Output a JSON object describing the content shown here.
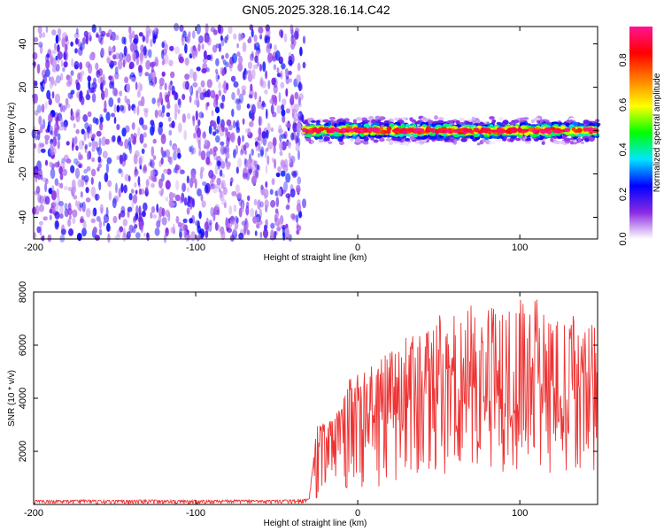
{
  "title": "GN05.2025.328.16.14.C42",
  "chart_data": [
    {
      "type": "heatmap",
      "xlabel": "Height of straight line (km)",
      "ylabel": "Frequency (Hz)",
      "xlim": [
        -200,
        148
      ],
      "ylim": [
        -50,
        48
      ],
      "xticks": [
        -200,
        -100,
        0,
        100
      ],
      "yticks": [
        -40,
        -20,
        0,
        20,
        40
      ],
      "colorbar": {
        "label": "Normalized spectral amplitude",
        "range": [
          0,
          0.95
        ],
        "ticks": [
          0.0,
          0.2,
          0.4,
          0.6,
          0.8
        ],
        "colormap": [
          "#ffffff",
          "#8a2be2",
          "#0000ff",
          "#00e5ff",
          "#00ff00",
          "#ffff00",
          "#ff7f00",
          "#ff0000",
          "#ff1493"
        ]
      },
      "regions": [
        {
          "x_range": [
            -200,
            -33
          ],
          "freq_range": [
            -50,
            48
          ],
          "pattern": "scattered noise",
          "amplitude_range": [
            0.0,
            0.2
          ]
        },
        {
          "x_range": [
            -33,
            148
          ],
          "freq_range": [
            -6,
            6
          ],
          "pattern": "narrow band centered at 0 Hz",
          "peak_amplitude": 0.95
        }
      ]
    },
    {
      "type": "line",
      "xlabel": "Height of straight line (km)",
      "ylabel": "SNR (10 * v/v)",
      "xlim": [
        -200,
        148
      ],
      "ylim": [
        0,
        8000
      ],
      "xticks": [
        -200,
        -100,
        0,
        100
      ],
      "yticks": [
        2000,
        4000,
        6000,
        8000
      ],
      "series": [
        {
          "color": "#ee3333",
          "x": [
            -200,
            -190,
            -180,
            -170,
            -160,
            -150,
            -140,
            -130,
            -120,
            -110,
            -100,
            -90,
            -80,
            -70,
            -60,
            -50,
            -40,
            -30,
            -25,
            -20,
            -15,
            -10,
            -5,
            0,
            5,
            10,
            15,
            20,
            25,
            30,
            35,
            40,
            45,
            50,
            55,
            60,
            65,
            70,
            75,
            80,
            85,
            90,
            95,
            100,
            105,
            110,
            115,
            120,
            125,
            130,
            135,
            140,
            145,
            148
          ],
          "y": [
            150,
            160,
            140,
            170,
            150,
            160,
            150,
            170,
            160,
            150,
            160,
            150,
            170,
            160,
            150,
            160,
            170,
            200,
            2700,
            3000,
            2500,
            3300,
            3200,
            3700,
            3000,
            3600,
            3800,
            3300,
            4000,
            3800,
            4500,
            4200,
            3900,
            4600,
            4300,
            4800,
            4100,
            4700,
            4400,
            4300,
            4900,
            4200,
            4600,
            4300,
            4700,
            5000,
            4200,
            4500,
            4100,
            4600,
            4300,
            4000,
            4400,
            4200
          ],
          "peak": [
            150,
            160,
            150,
            170,
            160,
            150,
            160,
            170,
            160,
            150,
            160,
            150,
            170,
            160,
            150,
            160,
            170,
            200,
            3200,
            3000,
            3300,
            3800,
            4800,
            4900,
            5000,
            5300,
            5500,
            6000,
            5800,
            6500,
            6300,
            7000,
            6400,
            7200,
            6800,
            7300,
            7000,
            7500,
            7100,
            7300,
            7500,
            7400,
            7600,
            7800,
            7500,
            8000,
            7200,
            7400,
            7000,
            7600,
            6800,
            7100,
            7000,
            6800
          ],
          "trough": [
            20,
            30,
            20,
            30,
            20,
            30,
            20,
            30,
            20,
            30,
            20,
            30,
            20,
            30,
            20,
            30,
            20,
            20,
            100,
            600,
            900,
            600,
            300,
            0,
            300,
            800,
            500,
            1000,
            800,
            1200,
            1100,
            900,
            1300,
            1200,
            1000,
            1400,
            1200,
            1100,
            1500,
            1200,
            1300,
            1100,
            1200,
            1300,
            1400,
            1200,
            1300,
            1100,
            1200,
            1300,
            1100,
            1200,
            1300,
            1200
          ]
        }
      ]
    }
  ]
}
